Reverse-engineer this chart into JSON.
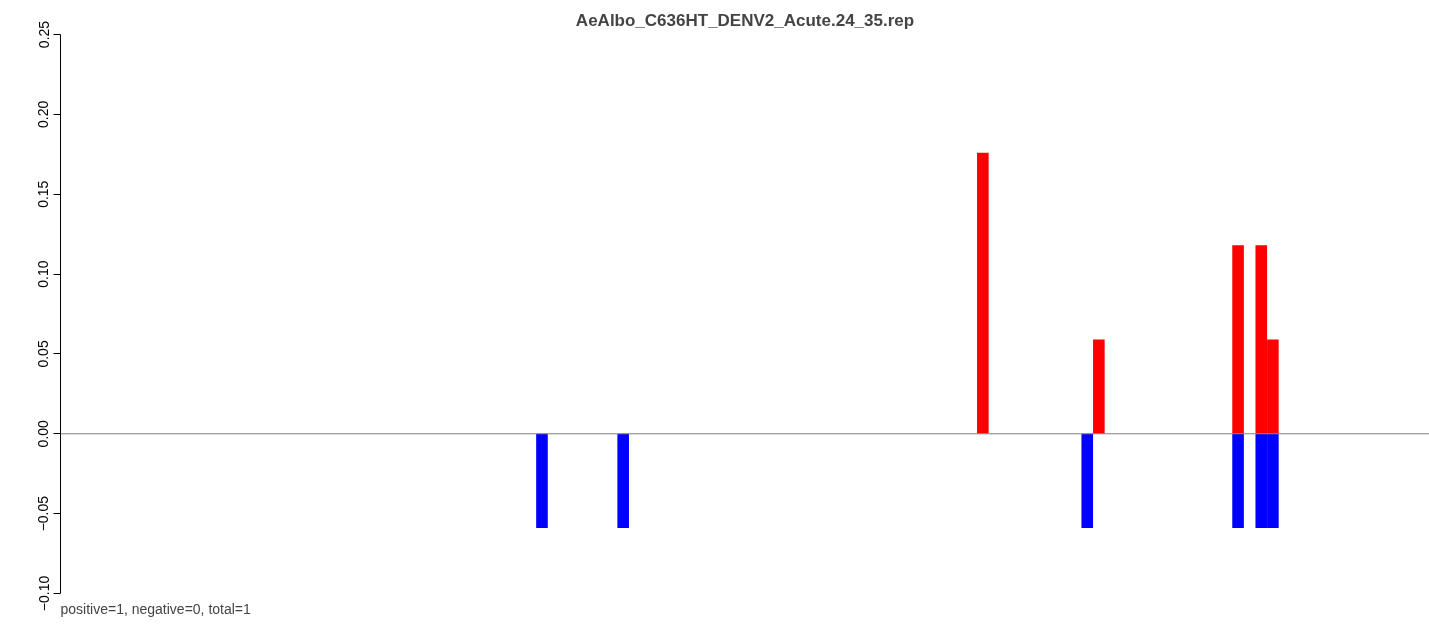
{
  "chart_data": {
    "type": "bar",
    "title": "AeAlbo_C636HT_DENV2_Acute.24_35.rep",
    "annotations": [
      "positive=1, negative=0, total=1"
    ],
    "categories": [
      null,
      null,
      null,
      null,
      null,
      null,
      null,
      null,
      null,
      null,
      null,
      null,
      null,
      null,
      null,
      null,
      null,
      null,
      null,
      null,
      null,
      null,
      null,
      null,
      null,
      null,
      null,
      null,
      null,
      null,
      null,
      null,
      null,
      null,
      null,
      null,
      null,
      null,
      null,
      null,
      null,
      null,
      null,
      null,
      null,
      null,
      null,
      null,
      null,
      null,
      null,
      null,
      null,
      null,
      null,
      null,
      null,
      null,
      null,
      null,
      null,
      null,
      null,
      null,
      null,
      null,
      null,
      null,
      null,
      null,
      null,
      null,
      null,
      null,
      null,
      null,
      null,
      null,
      null,
      null,
      null,
      null,
      null,
      null,
      null,
      null,
      null,
      null,
      null,
      null,
      null,
      null,
      null,
      null,
      null,
      null,
      null,
      null,
      null,
      null,
      null,
      null,
      null,
      null,
      null,
      null,
      null,
      null,
      null,
      null,
      null,
      null,
      null,
      null,
      null,
      null,
      null,
      null
    ],
    "series": [
      {
        "color": "#ff0000",
        "values": [
          null,
          null,
          null,
          null,
          null,
          null,
          null,
          null,
          null,
          null,
          null,
          null,
          null,
          null,
          null,
          null,
          null,
          null,
          null,
          null,
          null,
          null,
          null,
          null,
          null,
          null,
          null,
          null,
          null,
          null,
          null,
          null,
          null,
          null,
          null,
          null,
          null,
          null,
          null,
          null,
          null,
          null,
          null,
          null,
          null,
          null,
          null,
          null,
          null,
          null,
          null,
          null,
          null,
          null,
          null,
          null,
          null,
          null,
          null,
          null,
          null,
          null,
          null,
          null,
          null,
          null,
          null,
          null,
          null,
          null,
          null,
          null,
          null,
          null,
          null,
          null,
          null,
          null,
          null,
          0.176,
          null,
          null,
          null,
          null,
          null,
          null,
          null,
          null,
          null,
          0.059,
          null,
          null,
          null,
          null,
          null,
          null,
          null,
          null,
          null,
          null,
          null,
          0.118,
          null,
          0.118,
          0.059,
          null,
          null,
          null,
          null,
          null,
          null,
          null,
          null,
          null,
          null,
          null,
          null,
          null
        ]
      },
      {
        "color": "#0000ff",
        "values": [
          null,
          null,
          null,
          null,
          null,
          null,
          null,
          null,
          null,
          null,
          null,
          null,
          null,
          null,
          null,
          null,
          null,
          null,
          null,
          null,
          null,
          null,
          null,
          null,
          null,
          null,
          null,
          null,
          null,
          null,
          null,
          null,
          null,
          null,
          null,
          null,
          null,
          null,
          null,
          null,
          null,
          -0.059,
          null,
          null,
          null,
          null,
          null,
          null,
          -0.059,
          null,
          null,
          null,
          null,
          null,
          null,
          null,
          null,
          null,
          null,
          null,
          null,
          null,
          null,
          null,
          null,
          null,
          null,
          null,
          null,
          null,
          null,
          null,
          null,
          null,
          null,
          null,
          null,
          null,
          null,
          null,
          null,
          null,
          null,
          null,
          null,
          null,
          null,
          null,
          -0.059,
          null,
          null,
          null,
          null,
          null,
          null,
          null,
          null,
          null,
          null,
          null,
          null,
          -0.059,
          null,
          -0.059,
          -0.059,
          null,
          null,
          null,
          null,
          null,
          null,
          null,
          null,
          null,
          null,
          null,
          null,
          null
        ]
      }
    ],
    "ylim": [
      -0.1,
      0.25
    ],
    "yticks": [
      {
        "value": -0.1,
        "label": "−0.10"
      },
      {
        "value": -0.05,
        "label": "−0.05"
      },
      {
        "value": 0,
        "label": "0.00"
      },
      {
        "value": 0.05,
        "label": "0.05"
      },
      {
        "value": 0.1,
        "label": "0.10"
      },
      {
        "value": 0.15,
        "label": "0.15"
      },
      {
        "value": 0.2,
        "label": "0.20"
      },
      {
        "value": 0.25,
        "label": "0.25"
      }
    ],
    "ref_lines": [
      {
        "axis": "y",
        "value": 0,
        "color": "#808080"
      }
    ],
    "tick_labels": "y",
    "grid": false
  }
}
